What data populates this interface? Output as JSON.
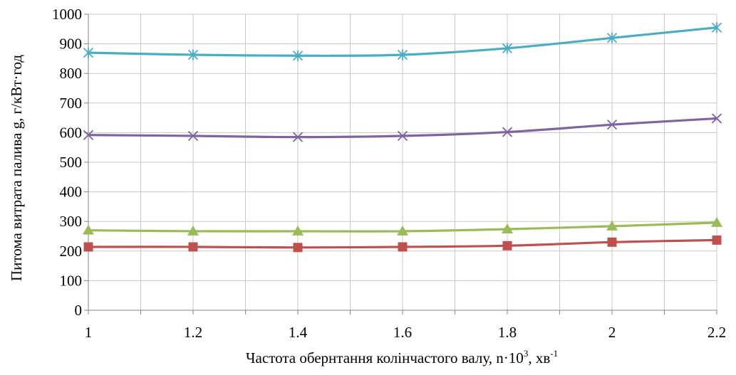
{
  "chart_data": {
    "type": "line",
    "title": "",
    "xlabel": "Частота обернтання колінчастого валу,  n·10³, хв⁻¹",
    "xlabel_main": "Частота обернтання колінчастого валу,  n·10",
    "xlabel_exp1": "3",
    "xlabel_mid": ", хв",
    "xlabel_exp2": "-1",
    "ylabel": "Питома витрата палива  g,  г/кВт·год",
    "x": [
      1,
      1.2,
      1.4,
      1.6,
      1.8,
      2,
      2.2
    ],
    "x_tick_labels": [
      "1",
      "1.2",
      "1.4",
      "1.6",
      "1.8",
      "2",
      "2.2"
    ],
    "xlim": [
      1,
      2.2
    ],
    "ylim": [
      0,
      1000
    ],
    "y_ticks": [
      0,
      100,
      200,
      300,
      400,
      500,
      600,
      700,
      800,
      900,
      1000
    ],
    "y_tick_labels": [
      "0",
      "100",
      "200",
      "300",
      "400",
      "500",
      "600",
      "700",
      "800",
      "900",
      "1000"
    ],
    "grid": true,
    "legend": "none",
    "series": [
      {
        "color": "#4bacc6",
        "marker": "asterisk",
        "values": [
          870,
          863,
          860,
          863,
          885,
          920,
          955
        ]
      },
      {
        "color": "#8064a2",
        "marker": "x",
        "values": [
          592,
          589,
          585,
          589,
          602,
          627,
          648
        ]
      },
      {
        "color": "#9bbb59",
        "marker": "triangle",
        "values": [
          270,
          267,
          267,
          267,
          274,
          284,
          296
        ]
      },
      {
        "color": "#c0504d",
        "marker": "square",
        "values": [
          214,
          214,
          212,
          214,
          218,
          230,
          237
        ]
      }
    ]
  }
}
